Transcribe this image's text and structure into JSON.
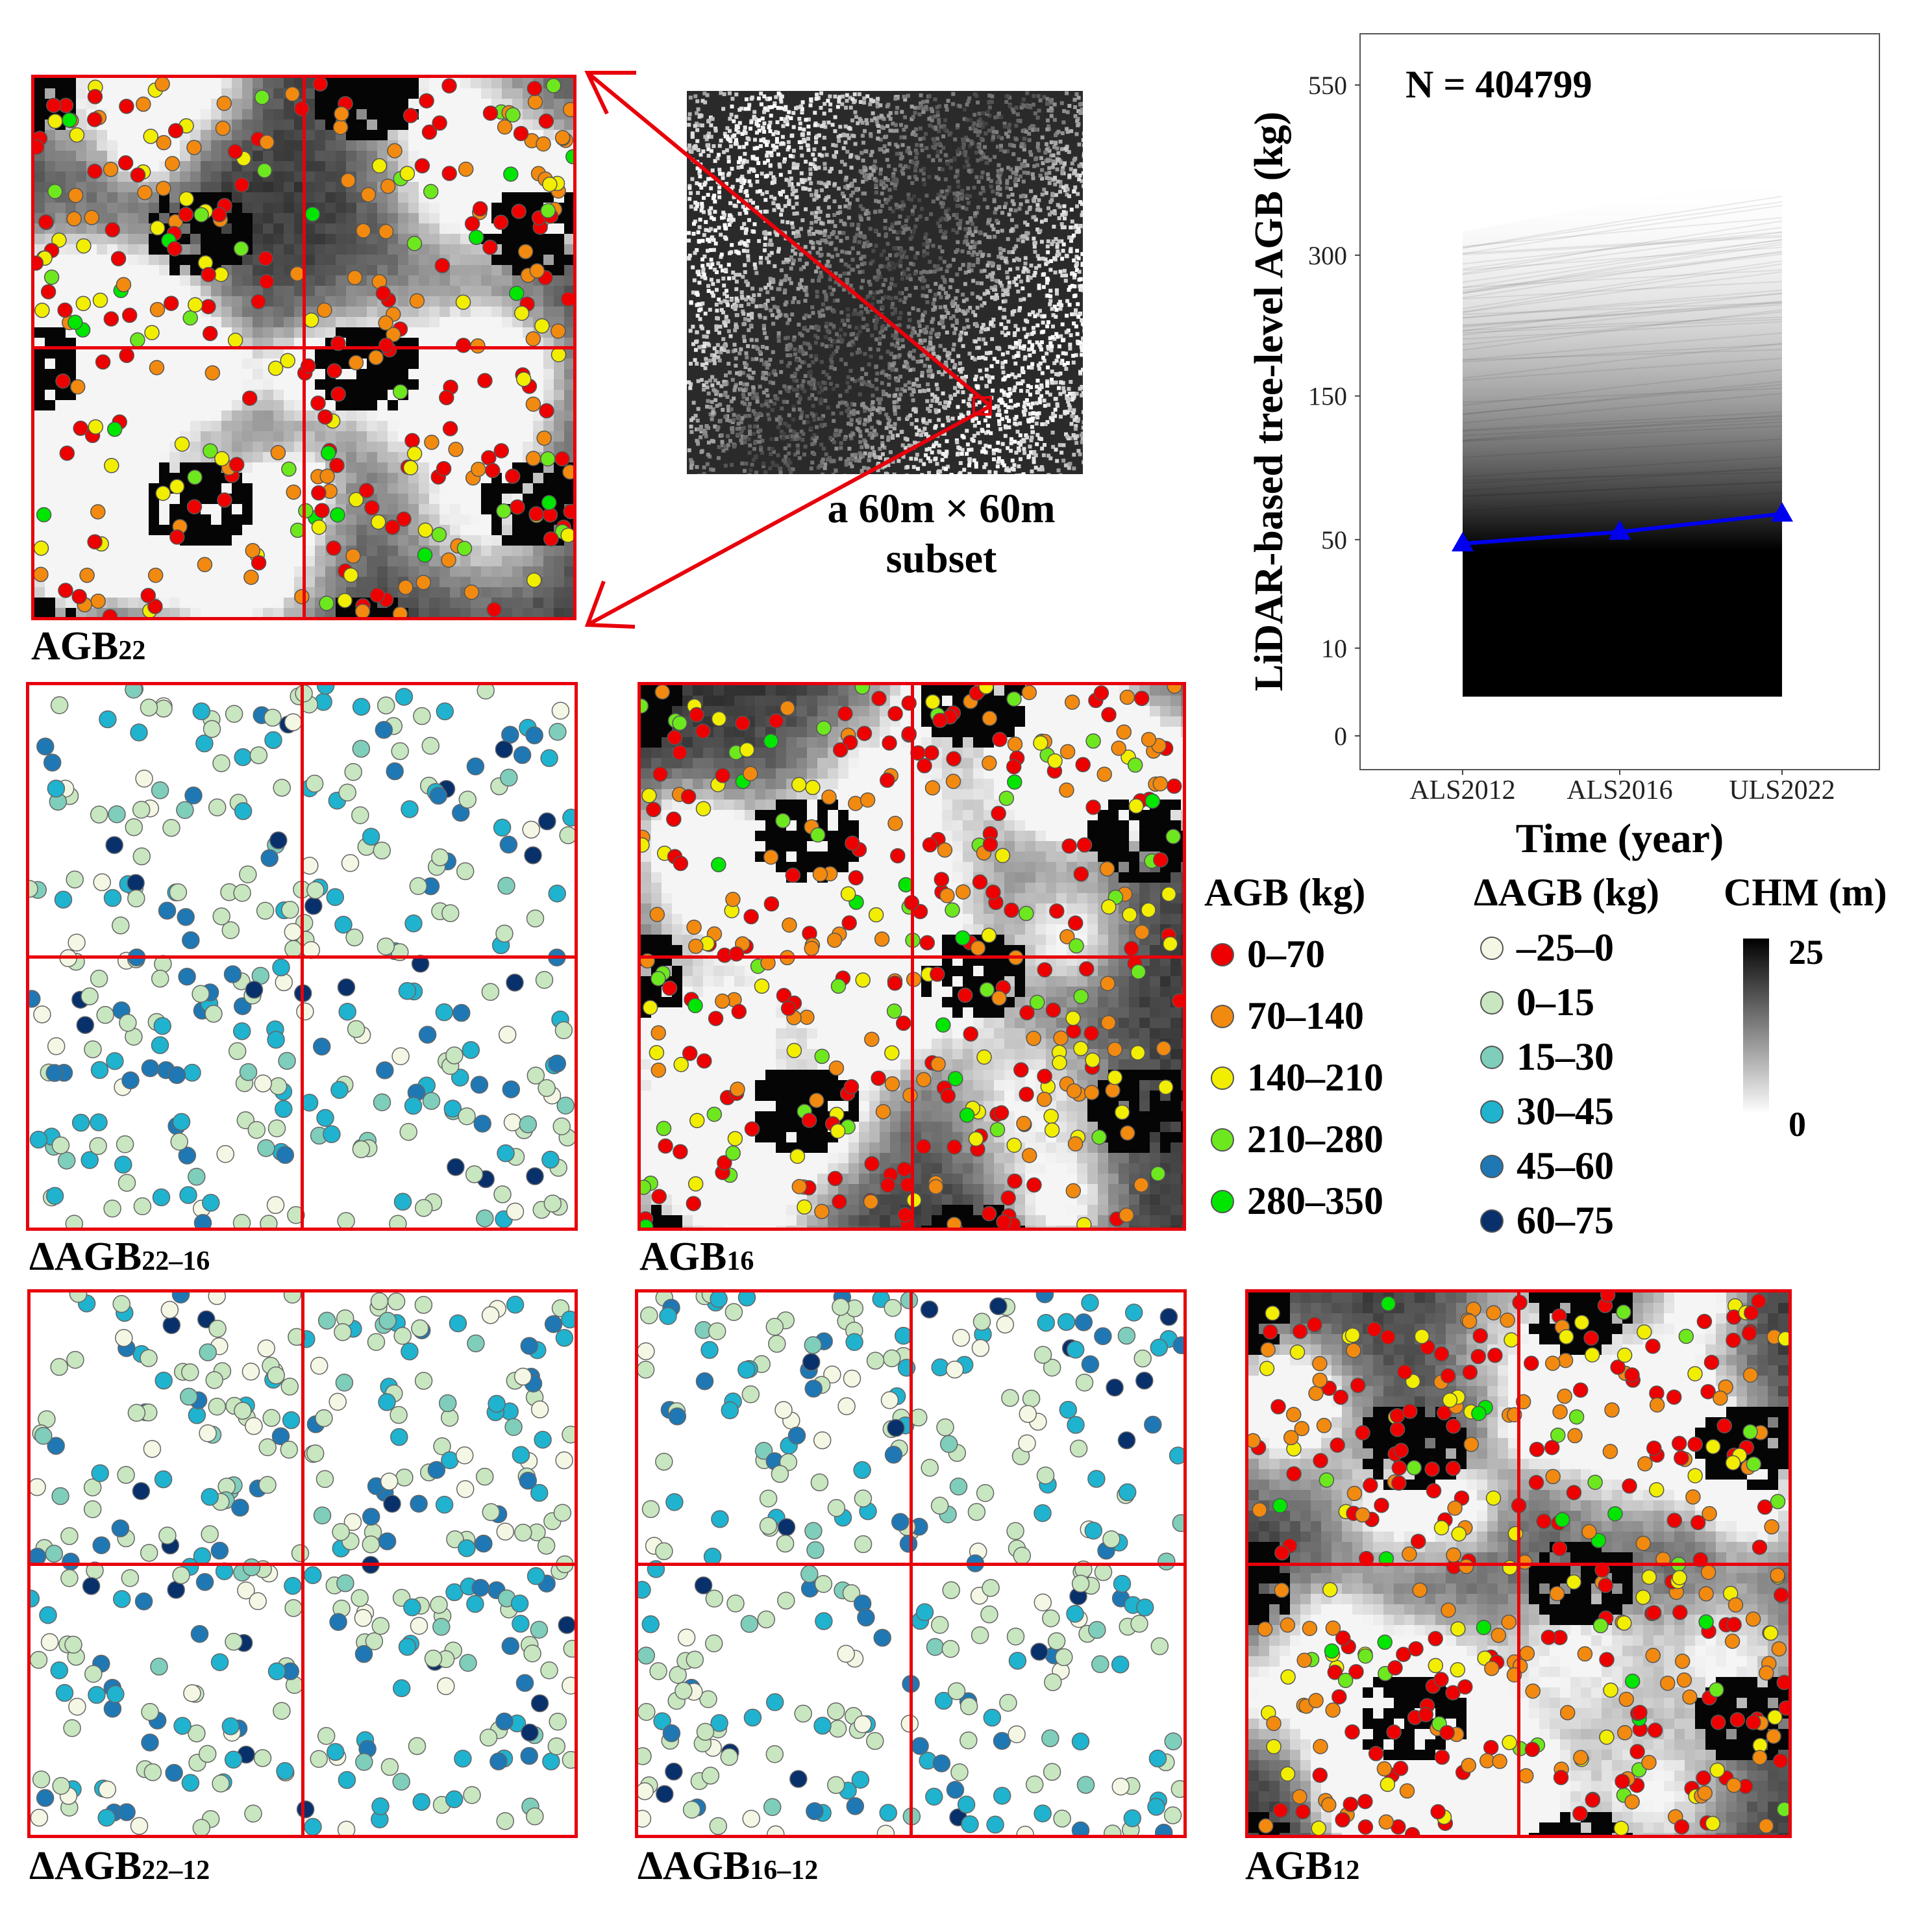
{
  "panels": {
    "agb22": {
      "label_main": "AGB",
      "label_sub": "22"
    },
    "dagb2216": {
      "label_main": "ΔAGB",
      "label_sub": "22–16"
    },
    "agb16": {
      "label_main": "AGB",
      "label_sub": "16"
    },
    "dagb2212": {
      "label_main": "ΔAGB",
      "label_sub": "22–12"
    },
    "dagb1612": {
      "label_main": "ΔAGB",
      "label_sub": "16–12"
    },
    "agb12": {
      "label_main": "AGB",
      "label_sub": "12"
    }
  },
  "overview": {
    "caption_line1": "a 60m × 60m",
    "caption_line2": "subset"
  },
  "legend_agb": {
    "title": "AGB (kg)",
    "items": [
      {
        "label": "0–70",
        "color": "#ee0000"
      },
      {
        "label": "70–140",
        "color": "#f28a10"
      },
      {
        "label": "140–210",
        "color": "#f2ee00"
      },
      {
        "label": "210–280",
        "color": "#6ee81e"
      },
      {
        "label": "280–350",
        "color": "#00e600"
      }
    ]
  },
  "legend_dagb": {
    "title": "ΔAGB (kg)",
    "items": [
      {
        "label": "–25–0",
        "color": "#f4f7e4"
      },
      {
        "label": "0–15",
        "color": "#c8e6c0"
      },
      {
        "label": "15–30",
        "color": "#7fcdbb"
      },
      {
        "label": "30–45",
        "color": "#1fb3cf"
      },
      {
        "label": "45–60",
        "color": "#1f78b4"
      },
      {
        "label": "60–75",
        "color": "#08306b"
      }
    ]
  },
  "legend_chm": {
    "title": "CHM (m)",
    "max_label": "25",
    "min_label": "0"
  },
  "chart_data": {
    "type": "line",
    "annotation": "N = 404799",
    "xlabel": "Time (year)",
    "ylabel": "LiDAR-based tree-level AGB (kg)",
    "categories": [
      "ALS2012",
      "ALS2016",
      "ULS2022"
    ],
    "y_scale": "sqrt",
    "ylim": [
      0,
      640
    ],
    "yticks": [
      0,
      10,
      50,
      150,
      300,
      550
    ],
    "ytick_labels": [
      "0",
      "10",
      "50",
      "150",
      "300",
      "550"
    ],
    "series": [
      {
        "name": "mean AGB",
        "color": "#0000ee",
        "values": [
          48,
          54,
          64
        ]
      }
    ],
    "individual_tree_range": {
      "min": [
        2,
        3,
        4
      ],
      "max": [
        330,
        370,
        410
      ]
    }
  }
}
